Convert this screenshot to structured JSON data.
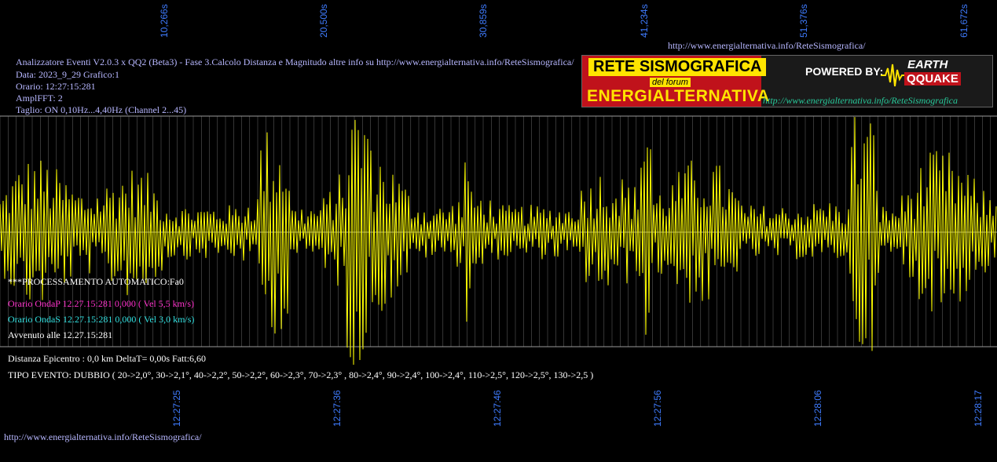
{
  "time_ticks": [
    "10,266s",
    "20,500s",
    "30,859s",
    "41,234s",
    "51,376s",
    "61,672s"
  ],
  "clock_ticks": [
    "12:27:25",
    "12:27:36",
    "12:27:46",
    "12:27:56",
    "12:28:06",
    "12:28:17"
  ],
  "top_url": "http://www.energialternativa.info/ReteSismografica/",
  "info": {
    "line1": "Analizzatore Eventi V2.0.3 x QQ2 (Beta3) - Fase 3.Calcolo Distanza e Magnitudo altre info su http://www.energialternativa.info/ReteSismografica/",
    "line2": "Data: 2023_9_29 Grafico:1",
    "line3": "Orario: 12:27:15:281",
    "line4": "AmplFFT: 2",
    "line5": "Taglio: ON 0,10Hz...4,40Hz       (Channel 2...45)"
  },
  "logo": {
    "title1": "RETE SISMOGRAFICA",
    "title2": "del forum",
    "title3": "ENERGIALTERNATIVA",
    "powered": "POWERED BY:",
    "brand1": "EARTH",
    "brand2": "QQUAKE",
    "url": "http://www.energialternativa.info/ReteSismografica"
  },
  "processing": "***PROCESSAMENTO AUTOMATICO:Fa0",
  "onda_p": "Orario OndaP 12.27.15:281  0,000 ( Vel 5,5 km/s)",
  "onda_s": "Orario OndaS 12.27.15:281  0,000 ( Vel 3,0 km/s)",
  "avvenuto": "Avvenuto alle 12.27.15:281",
  "distanza": "Distanza Epicentro : 0,0 km DeltaT= 0,00s  Fatt:6,60",
  "tipo_evento": "TIPO EVENTO: DUBBIO ( 20->2,0°, 30->2,1°, 40->2,2°, 50->2,2°, 60->2,3°, 70->2,3° , 80->2,4°, 90->2,4°, 100->2,4°, 110->2,5°, 120->2,5°, 130->2,5 )",
  "bottom_url": "http://www.energialternativa.info/ReteSismografica/",
  "colors": {
    "background": "#000000",
    "trace": "#ffff00",
    "grid": "#808080",
    "tick_label": "#3f7cff",
    "onda_p": "#ff33cc",
    "onda_s": "#33e0e0",
    "info_text": "#b7b7ff"
  }
}
